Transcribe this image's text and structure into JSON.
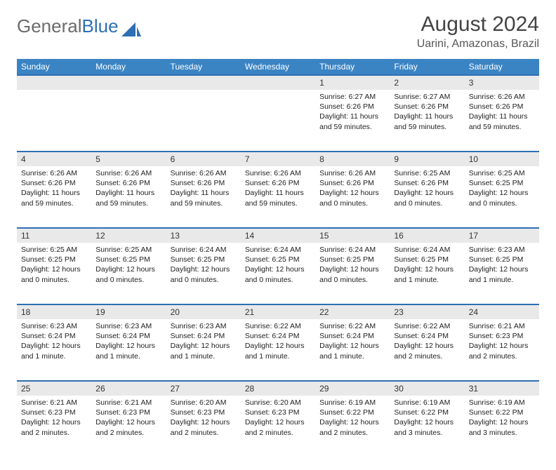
{
  "brand": {
    "part1": "General",
    "part2": "Blue"
  },
  "title": "August 2024",
  "location": "Uarini, Amazonas, Brazil",
  "colors": {
    "header_bg": "#3b84c4",
    "header_text": "#ffffff",
    "rule": "#2e6fb3",
    "daynum_bg": "#e9e9e9",
    "logo_gray": "#6b6b6b",
    "logo_blue": "#2e6fb3"
  },
  "dayHeaders": [
    "Sunday",
    "Monday",
    "Tuesday",
    "Wednesday",
    "Thursday",
    "Friday",
    "Saturday"
  ],
  "weeks": [
    [
      null,
      null,
      null,
      null,
      {
        "n": "1",
        "sr": "6:27 AM",
        "ss": "6:26 PM",
        "dl": "11 hours and 59 minutes."
      },
      {
        "n": "2",
        "sr": "6:27 AM",
        "ss": "6:26 PM",
        "dl": "11 hours and 59 minutes."
      },
      {
        "n": "3",
        "sr": "6:26 AM",
        "ss": "6:26 PM",
        "dl": "11 hours and 59 minutes."
      }
    ],
    [
      {
        "n": "4",
        "sr": "6:26 AM",
        "ss": "6:26 PM",
        "dl": "11 hours and 59 minutes."
      },
      {
        "n": "5",
        "sr": "6:26 AM",
        "ss": "6:26 PM",
        "dl": "11 hours and 59 minutes."
      },
      {
        "n": "6",
        "sr": "6:26 AM",
        "ss": "6:26 PM",
        "dl": "11 hours and 59 minutes."
      },
      {
        "n": "7",
        "sr": "6:26 AM",
        "ss": "6:26 PM",
        "dl": "11 hours and 59 minutes."
      },
      {
        "n": "8",
        "sr": "6:26 AM",
        "ss": "6:26 PM",
        "dl": "12 hours and 0 minutes."
      },
      {
        "n": "9",
        "sr": "6:25 AM",
        "ss": "6:26 PM",
        "dl": "12 hours and 0 minutes."
      },
      {
        "n": "10",
        "sr": "6:25 AM",
        "ss": "6:25 PM",
        "dl": "12 hours and 0 minutes."
      }
    ],
    [
      {
        "n": "11",
        "sr": "6:25 AM",
        "ss": "6:25 PM",
        "dl": "12 hours and 0 minutes."
      },
      {
        "n": "12",
        "sr": "6:25 AM",
        "ss": "6:25 PM",
        "dl": "12 hours and 0 minutes."
      },
      {
        "n": "13",
        "sr": "6:24 AM",
        "ss": "6:25 PM",
        "dl": "12 hours and 0 minutes."
      },
      {
        "n": "14",
        "sr": "6:24 AM",
        "ss": "6:25 PM",
        "dl": "12 hours and 0 minutes."
      },
      {
        "n": "15",
        "sr": "6:24 AM",
        "ss": "6:25 PM",
        "dl": "12 hours and 0 minutes."
      },
      {
        "n": "16",
        "sr": "6:24 AM",
        "ss": "6:25 PM",
        "dl": "12 hours and 1 minute."
      },
      {
        "n": "17",
        "sr": "6:23 AM",
        "ss": "6:25 PM",
        "dl": "12 hours and 1 minute."
      }
    ],
    [
      {
        "n": "18",
        "sr": "6:23 AM",
        "ss": "6:24 PM",
        "dl": "12 hours and 1 minute."
      },
      {
        "n": "19",
        "sr": "6:23 AM",
        "ss": "6:24 PM",
        "dl": "12 hours and 1 minute."
      },
      {
        "n": "20",
        "sr": "6:23 AM",
        "ss": "6:24 PM",
        "dl": "12 hours and 1 minute."
      },
      {
        "n": "21",
        "sr": "6:22 AM",
        "ss": "6:24 PM",
        "dl": "12 hours and 1 minute."
      },
      {
        "n": "22",
        "sr": "6:22 AM",
        "ss": "6:24 PM",
        "dl": "12 hours and 1 minute."
      },
      {
        "n": "23",
        "sr": "6:22 AM",
        "ss": "6:24 PM",
        "dl": "12 hours and 2 minutes."
      },
      {
        "n": "24",
        "sr": "6:21 AM",
        "ss": "6:23 PM",
        "dl": "12 hours and 2 minutes."
      }
    ],
    [
      {
        "n": "25",
        "sr": "6:21 AM",
        "ss": "6:23 PM",
        "dl": "12 hours and 2 minutes."
      },
      {
        "n": "26",
        "sr": "6:21 AM",
        "ss": "6:23 PM",
        "dl": "12 hours and 2 minutes."
      },
      {
        "n": "27",
        "sr": "6:20 AM",
        "ss": "6:23 PM",
        "dl": "12 hours and 2 minutes."
      },
      {
        "n": "28",
        "sr": "6:20 AM",
        "ss": "6:23 PM",
        "dl": "12 hours and 2 minutes."
      },
      {
        "n": "29",
        "sr": "6:19 AM",
        "ss": "6:22 PM",
        "dl": "12 hours and 2 minutes."
      },
      {
        "n": "30",
        "sr": "6:19 AM",
        "ss": "6:22 PM",
        "dl": "12 hours and 3 minutes."
      },
      {
        "n": "31",
        "sr": "6:19 AM",
        "ss": "6:22 PM",
        "dl": "12 hours and 3 minutes."
      }
    ]
  ],
  "labels": {
    "sunrise": "Sunrise:",
    "sunset": "Sunset:",
    "daylight": "Daylight:"
  }
}
